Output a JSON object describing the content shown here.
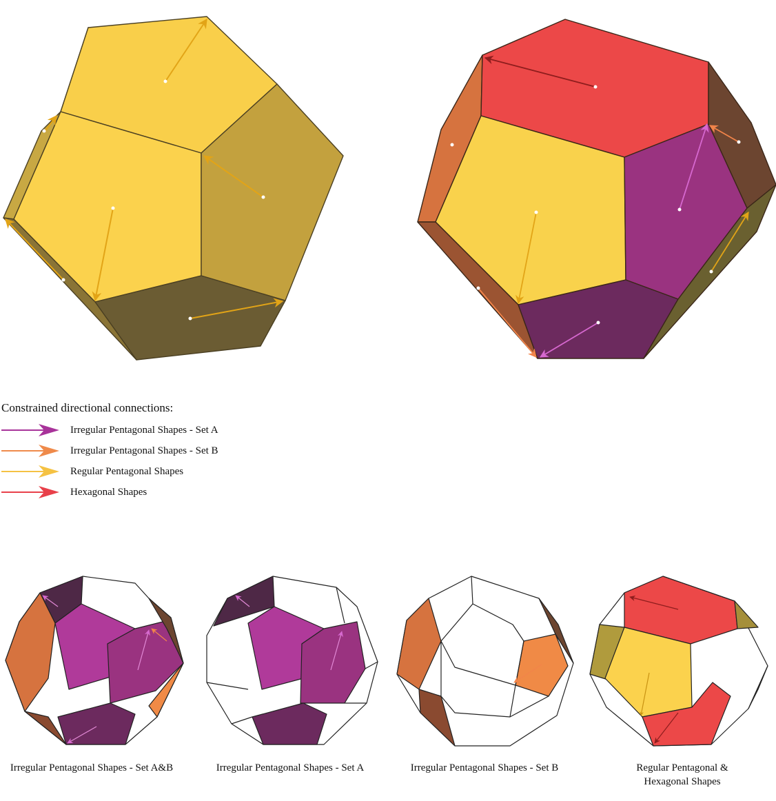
{
  "legend": {
    "title": "Constrained directional connections:",
    "items": [
      {
        "label": "Irregular Pentagonal Shapes - Set A",
        "color": "#a8339a"
      },
      {
        "label": "Irregular Pentagonal Shapes - Set B",
        "color": "#ef8a4a"
      },
      {
        "label": "Regular Pentagonal Shapes",
        "color": "#f5c243"
      },
      {
        "label": "Hexagonal Shapes",
        "color": "#e8404a"
      }
    ]
  },
  "captions": {
    "c1": "Irregular Pentagonal Shapes - Set A&B",
    "c2": "Irregular Pentagonal Shapes - Set A",
    "c3": "Irregular Pentagonal Shapes - Set B",
    "c4_line1": "Regular Pentagonal  &",
    "c4_line2": "Hexagonal Shapes"
  },
  "colors": {
    "yellow": "#f9cf4a",
    "yellow_dark": "#c0a13f",
    "olive_dark": "#6b5c33",
    "red": "#ec4848",
    "purple": "#9a3380",
    "purple_light": "#b03a9a",
    "purple_dark": "#6c2a5e",
    "orange": "#d6733f",
    "orange_light": "#f08a46",
    "brown": "#6c4530",
    "outline": "#222222"
  }
}
